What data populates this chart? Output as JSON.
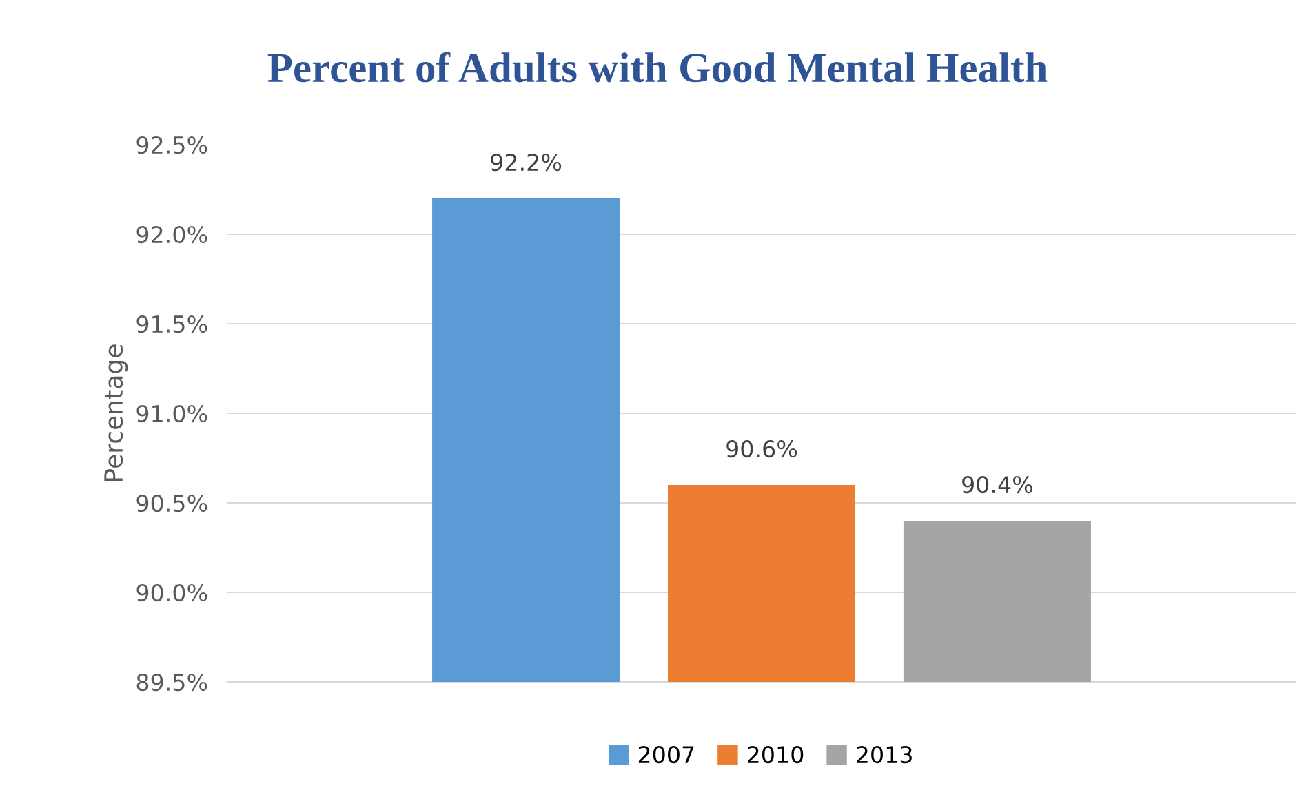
{
  "chart_data": {
    "type": "bar",
    "title": "Percent of Adults with Good Mental Health",
    "ylabel": "Percentage",
    "categories": [
      null
    ],
    "series": [
      {
        "name": "2007",
        "color": "#5b9bd5",
        "values": [
          92.2
        ],
        "value_labels": [
          "92.2%"
        ]
      },
      {
        "name": "2010",
        "color": "#ed7d31",
        "values": [
          90.6
        ],
        "value_labels": [
          "90.6%"
        ]
      },
      {
        "name": "2013",
        "color": "#a5a5a5",
        "values": [
          90.4
        ],
        "value_labels": [
          "90.4%"
        ]
      }
    ],
    "ylim": [
      89.5,
      92.5
    ],
    "yticks": [
      {
        "value": 89.5,
        "label": "89.5%"
      },
      {
        "value": 90.0,
        "label": "90.0%"
      },
      {
        "value": 90.5,
        "label": "90.5%"
      },
      {
        "value": 91.0,
        "label": "91.0%"
      },
      {
        "value": 91.5,
        "label": "91.5%"
      },
      {
        "value": 92.0,
        "label": "92.0%"
      },
      {
        "value": 92.5,
        "label": "92.5%"
      }
    ],
    "grid": "y",
    "legend": "bottom"
  }
}
